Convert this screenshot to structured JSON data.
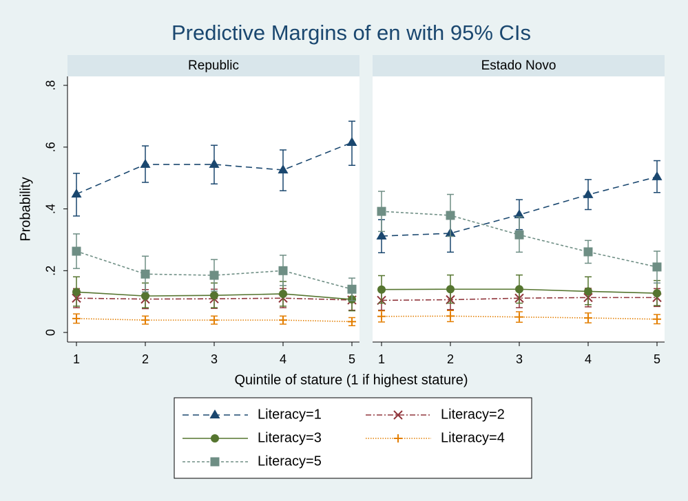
{
  "chart_data": {
    "type": "line",
    "title": "Predictive Margins of en with 95% CIs",
    "xlabel": "Quintile of stature (1 if highest stature)",
    "ylabel": "Probability",
    "x": [
      1,
      2,
      3,
      4,
      5
    ],
    "xticks": [
      1,
      2,
      3,
      4,
      5
    ],
    "xlim": [
      0.87,
      5.11
    ],
    "ylim": [
      -0.031,
      0.829
    ],
    "yticks": [
      {
        "value": 0,
        "label": "0"
      },
      {
        "value": 0.2,
        "label": ".2"
      },
      {
        "value": 0.4,
        "label": ".4"
      },
      {
        "value": 0.6,
        "label": ".6"
      },
      {
        "value": 0.8,
        "label": ".8"
      }
    ],
    "series": [
      {
        "name": "Literacy=1",
        "color": "#1a476f",
        "marker": "triangle",
        "dash": "9,6"
      },
      {
        "name": "Literacy=2",
        "color": "#90353b",
        "marker": "x",
        "dash": "8,3,2,3"
      },
      {
        "name": "Literacy=3",
        "color": "#55752f",
        "marker": "circle",
        "dash": "none"
      },
      {
        "name": "Literacy=4",
        "color": "#e37e00",
        "marker": "plus",
        "dash": "1.5,2"
      },
      {
        "name": "Literacy=5",
        "color": "#6e8e84",
        "marker": "square",
        "dash": "4,3"
      }
    ],
    "panels": [
      {
        "title": "Republic",
        "series": [
          {
            "values": [
              0.448,
              0.544,
              0.544,
              0.526,
              0.615
            ],
            "ci_low": [
              0.377,
              0.486,
              0.481,
              0.459,
              0.541
            ],
            "ci_high": [
              0.515,
              0.604,
              0.606,
              0.591,
              0.684
            ]
          },
          {
            "values": [
              0.111,
              0.108,
              0.109,
              0.111,
              0.105
            ],
            "ci_low": [
              0.08,
              0.077,
              0.078,
              0.08,
              0.072
            ],
            "ci_high": [
              0.142,
              0.139,
              0.14,
              0.142,
              0.138
            ]
          },
          {
            "values": [
              0.131,
              0.118,
              0.12,
              0.125,
              0.107
            ],
            "ci_low": [
              0.085,
              0.08,
              0.08,
              0.085,
              0.07
            ],
            "ci_high": [
              0.18,
              0.16,
              0.16,
              0.165,
              0.145
            ]
          },
          {
            "values": [
              0.045,
              0.04,
              0.04,
              0.04,
              0.035
            ],
            "ci_low": [
              0.03,
              0.027,
              0.027,
              0.027,
              0.022
            ],
            "ci_high": [
              0.06,
              0.053,
              0.053,
              0.053,
              0.048
            ]
          },
          {
            "values": [
              0.263,
              0.189,
              0.185,
              0.2,
              0.14
            ],
            "ci_low": [
              0.207,
              0.131,
              0.134,
              0.152,
              0.103
            ],
            "ci_high": [
              0.319,
              0.247,
              0.236,
              0.25,
              0.176
            ]
          }
        ]
      },
      {
        "title": "Estado Novo",
        "series": [
          {
            "values": [
              0.312,
              0.321,
              0.381,
              0.446,
              0.504
            ],
            "ci_low": [
              0.258,
              0.26,
              0.333,
              0.398,
              0.453
            ],
            "ci_high": [
              0.365,
              0.38,
              0.43,
              0.495,
              0.556
            ]
          },
          {
            "values": [
              0.104,
              0.106,
              0.111,
              0.113,
              0.113
            ],
            "ci_low": [
              0.072,
              0.074,
              0.08,
              0.083,
              0.084
            ],
            "ci_high": [
              0.136,
              0.138,
              0.142,
              0.143,
              0.142
            ]
          },
          {
            "values": [
              0.139,
              0.14,
              0.14,
              0.133,
              0.127
            ],
            "ci_low": [
              0.095,
              0.095,
              0.095,
              0.09,
              0.087
            ],
            "ci_high": [
              0.184,
              0.186,
              0.186,
              0.18,
              0.168
            ]
          },
          {
            "values": [
              0.052,
              0.053,
              0.05,
              0.047,
              0.043
            ],
            "ci_low": [
              0.034,
              0.035,
              0.033,
              0.031,
              0.028
            ],
            "ci_high": [
              0.07,
              0.071,
              0.067,
              0.063,
              0.058
            ]
          },
          {
            "values": [
              0.392,
              0.379,
              0.316,
              0.261,
              0.212
            ],
            "ci_low": [
              0.327,
              0.311,
              0.26,
              0.224,
              0.16
            ],
            "ci_high": [
              0.457,
              0.447,
              0.374,
              0.298,
              0.263
            ]
          }
        ]
      }
    ]
  }
}
